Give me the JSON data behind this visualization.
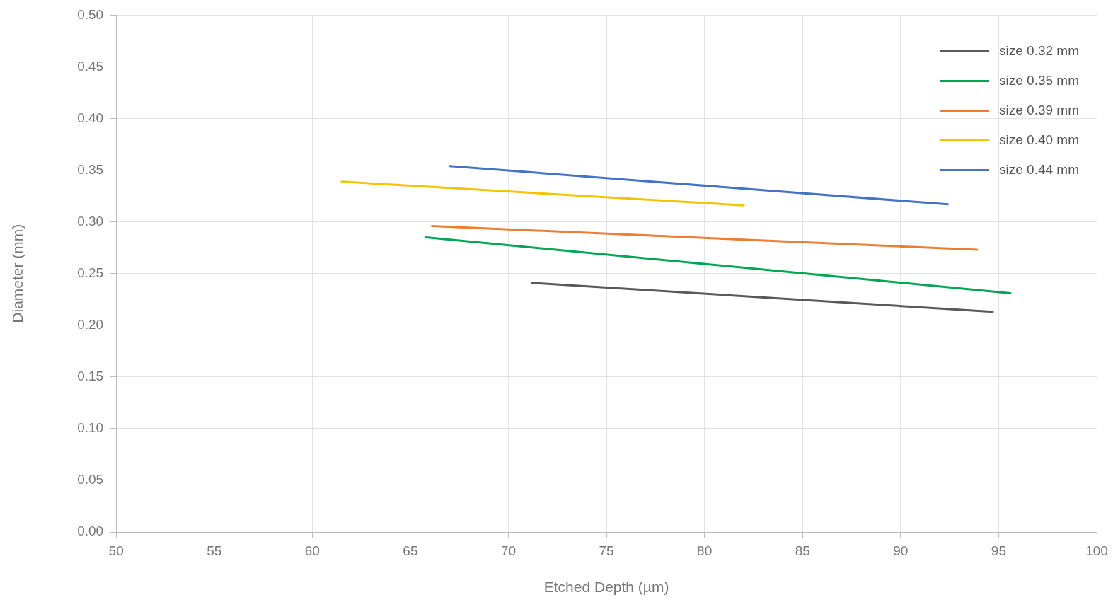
{
  "chart_data": {
    "type": "line",
    "xlabel": "Etched Depth (µm)",
    "ylabel": "Diameter (mm)",
    "xlim": [
      50,
      100
    ],
    "xticks": [
      50,
      55,
      60,
      65,
      70,
      75,
      80,
      85,
      90,
      95,
      100
    ],
    "ylim": [
      0,
      0.5
    ],
    "yticks": [
      {
        "value": 0,
        "label": "0.00"
      },
      {
        "value": 0.05,
        "label": "0.05"
      },
      {
        "value": 0.1,
        "label": "0.10"
      },
      {
        "value": 0.15,
        "label": "0.15"
      },
      {
        "value": 0.2,
        "label": "0.20"
      },
      {
        "value": 0.25,
        "label": "0.25"
      },
      {
        "value": 0.3,
        "label": "0.30"
      },
      {
        "value": 0.35,
        "label": "0.35"
      },
      {
        "value": 0.4,
        "label": "0.40"
      },
      {
        "value": 0.45,
        "label": "0.45"
      },
      {
        "value": 0.5,
        "label": "0.50"
      }
    ],
    "grid": true,
    "legend": "top right",
    "marker": "none",
    "line_style": "solid",
    "series": [
      {
        "name": "size 0.32 mm",
        "color": "#595959",
        "x": [
          71.2,
          94.7
        ],
        "values": [
          0.241,
          0.213
        ]
      },
      {
        "name": "size 0.35 mm",
        "color": "#00a651",
        "x": [
          65.8,
          95.6
        ],
        "values": [
          0.285,
          0.231
        ]
      },
      {
        "name": "size 0.39 mm",
        "color": "#ed7d31",
        "x": [
          66.1,
          93.9
        ],
        "values": [
          0.296,
          0.273
        ]
      },
      {
        "name": "size 0.40 mm",
        "color": "#f5c400",
        "x": [
          61.5,
          82.0
        ],
        "values": [
          0.339,
          0.316
        ]
      },
      {
        "name": "size 0.44 mm",
        "color": "#4472c4",
        "x": [
          67.0,
          92.4
        ],
        "values": [
          0.354,
          0.317
        ]
      }
    ]
  }
}
